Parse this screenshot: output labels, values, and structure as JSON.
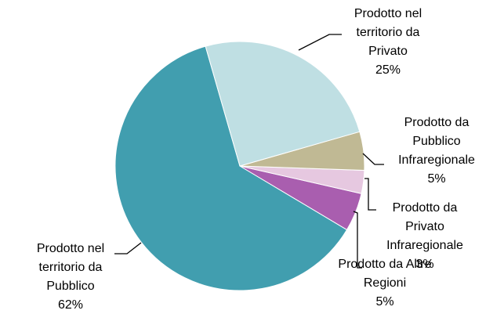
{
  "chart_data": {
    "type": "pie",
    "categories": [
      "Prodotto nel territorio da Privato",
      "Prodotto da Pubblico Infraregionale",
      "Prodotto da Privato Infraregionale",
      "Prodotto da Altre Regioni",
      "Prodotto nel territorio da Pubblico"
    ],
    "values": [
      25,
      5,
      3,
      5,
      62
    ],
    "value_labels": [
      "25%",
      "5%",
      "3%",
      "5%",
      "62%"
    ],
    "colors": [
      "#bfdfe3",
      "#c0b994",
      "#e6c8e0",
      "#a95eaf",
      "#419eaf"
    ]
  }
}
